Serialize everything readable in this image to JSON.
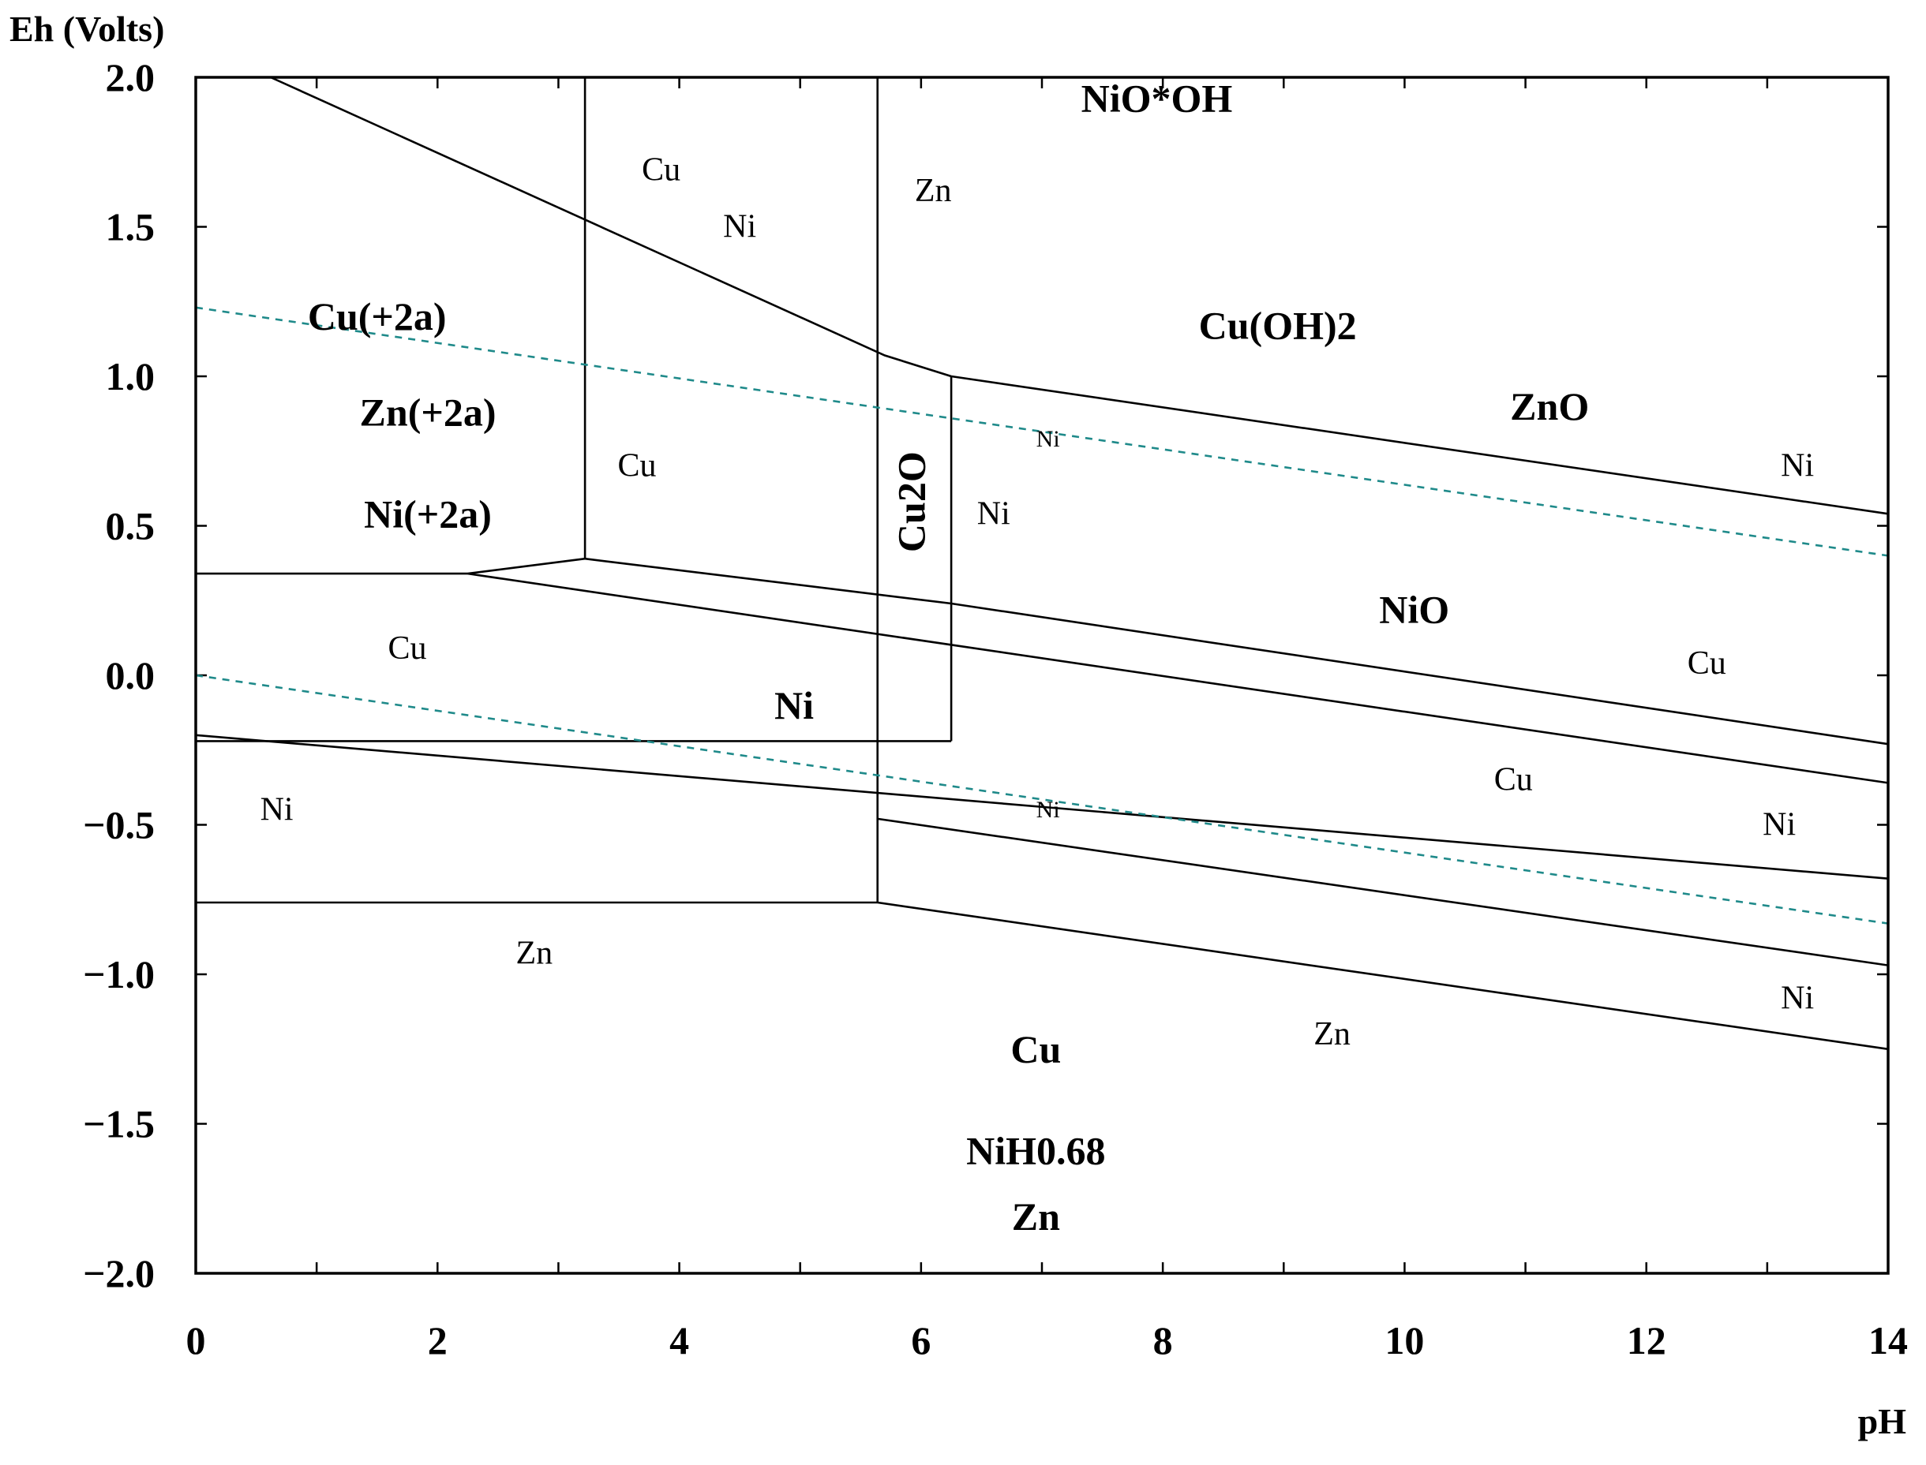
{
  "chart_data": {
    "type": "line",
    "title": "",
    "xlabel": "pH",
    "ylabel": "Eh (Volts)",
    "xlim": [
      0,
      14
    ],
    "ylim": [
      -2.0,
      2.0
    ],
    "grid": false,
    "x_ticks": [
      "0",
      "2",
      "4",
      "6",
      "8",
      "10",
      "12",
      "14"
    ],
    "y_ticks": [
      {
        "value": 2.0,
        "label": "2.0"
      },
      {
        "value": 1.5,
        "label": "1.5"
      },
      {
        "value": 1.0,
        "label": "1.0"
      },
      {
        "value": 0.5,
        "label": "0.5"
      },
      {
        "value": 0.0,
        "label": "0.0"
      },
      {
        "value": -0.5,
        "label": "-0.5"
      },
      {
        "value": -1.0,
        "label": "-1.0"
      },
      {
        "value": -1.5,
        "label": "-1.5"
      },
      {
        "value": -2.0,
        "label": "-2.0"
      }
    ],
    "boundaries": [
      {
        "style": "solid",
        "points": [
          [
            0.62,
            2.0
          ],
          [
            5.7,
            1.07
          ],
          [
            6.25,
            1.0
          ]
        ]
      },
      {
        "style": "solid",
        "points": [
          [
            6.25,
            1.0
          ],
          [
            14.0,
            0.54
          ]
        ]
      },
      {
        "style": "solid",
        "points": [
          [
            3.22,
            2.0
          ],
          [
            3.22,
            0.39
          ]
        ]
      },
      {
        "style": "solid",
        "points": [
          [
            5.64,
            2.0
          ],
          [
            5.64,
            -0.76
          ]
        ]
      },
      {
        "style": "solid",
        "points": [
          [
            6.25,
            1.0
          ],
          [
            6.25,
            -0.22
          ]
        ]
      },
      {
        "style": "solid",
        "points": [
          [
            0.0,
            0.34
          ],
          [
            2.25,
            0.34
          ]
        ]
      },
      {
        "style": "solid",
        "points": [
          [
            2.25,
            0.34
          ],
          [
            3.22,
            0.39
          ]
        ]
      },
      {
        "style": "solid",
        "points": [
          [
            3.22,
            0.39
          ],
          [
            6.25,
            0.24
          ],
          [
            14.0,
            -0.23
          ]
        ]
      },
      {
        "style": "solid",
        "points": [
          [
            2.25,
            0.34
          ],
          [
            14.0,
            -0.36
          ]
        ]
      },
      {
        "style": "solid",
        "points": [
          [
            0.0,
            -0.22
          ],
          [
            6.25,
            -0.22
          ]
        ]
      },
      {
        "style": "solid",
        "points": [
          [
            0.0,
            -0.2
          ],
          [
            14.0,
            -0.68
          ]
        ]
      },
      {
        "style": "solid",
        "points": [
          [
            5.64,
            -0.48
          ],
          [
            14.0,
            -0.97
          ]
        ]
      },
      {
        "style": "solid",
        "points": [
          [
            0.0,
            -0.76
          ],
          [
            5.64,
            -0.76
          ]
        ]
      },
      {
        "style": "solid",
        "points": [
          [
            5.64,
            -0.76
          ],
          [
            14.0,
            -1.25
          ]
        ]
      },
      {
        "style": "water",
        "points": [
          [
            0.0,
            1.23
          ],
          [
            14.0,
            0.4
          ]
        ]
      },
      {
        "style": "water",
        "points": [
          [
            0.0,
            0.0
          ],
          [
            14.0,
            -0.83
          ]
        ]
      }
    ],
    "annotations": [
      {
        "text": "NiO*OH",
        "x": 7.95,
        "y": 1.93,
        "style": "bold"
      },
      {
        "text": "Cu",
        "x": 3.85,
        "y": 1.69,
        "style": "normal"
      },
      {
        "text": "Ni",
        "x": 4.5,
        "y": 1.5,
        "style": "normal"
      },
      {
        "text": "Zn",
        "x": 6.1,
        "y": 1.62,
        "style": "normal"
      },
      {
        "text": "Cu(+2a)",
        "x": 1.5,
        "y": 1.2,
        "style": "bold"
      },
      {
        "text": "Cu(OH)2",
        "x": 8.95,
        "y": 1.17,
        "style": "bold"
      },
      {
        "text": "Zn(+2a)",
        "x": 1.92,
        "y": 0.88,
        "style": "bold"
      },
      {
        "text": "ZnO",
        "x": 11.2,
        "y": 0.9,
        "style": "bold"
      },
      {
        "text": "Cu",
        "x": 3.65,
        "y": 0.7,
        "style": "normal"
      },
      {
        "text": "Ni",
        "x": 7.05,
        "y": 0.79,
        "style": "tiny"
      },
      {
        "text": "Ni",
        "x": 13.25,
        "y": 0.7,
        "style": "normal"
      },
      {
        "text": "Ni(+2a)",
        "x": 1.92,
        "y": 0.54,
        "style": "bold"
      },
      {
        "text": "Cu2O",
        "x": 5.92,
        "y": 0.58,
        "style": "bold",
        "rotate": -90
      },
      {
        "text": "Ni",
        "x": 6.6,
        "y": 0.54,
        "style": "normal"
      },
      {
        "text": "NiO",
        "x": 10.08,
        "y": 0.22,
        "style": "bold"
      },
      {
        "text": "Cu",
        "x": 1.75,
        "y": 0.09,
        "style": "normal"
      },
      {
        "text": "Cu",
        "x": 12.5,
        "y": 0.04,
        "style": "normal"
      },
      {
        "text": "Ni",
        "x": 4.95,
        "y": -0.1,
        "style": "bold"
      },
      {
        "text": "Cu",
        "x": 10.9,
        "y": -0.35,
        "style": "normal"
      },
      {
        "text": "Ni",
        "x": 0.67,
        "y": -0.45,
        "style": "normal"
      },
      {
        "text": "Ni",
        "x": 7.05,
        "y": -0.45,
        "style": "tiny"
      },
      {
        "text": "Ni",
        "x": 13.1,
        "y": -0.5,
        "style": "normal"
      },
      {
        "text": "Zn",
        "x": 2.8,
        "y": -0.93,
        "style": "normal"
      },
      {
        "text": "Ni",
        "x": 13.25,
        "y": -1.08,
        "style": "normal"
      },
      {
        "text": "Zn",
        "x": 9.4,
        "y": -1.2,
        "style": "normal"
      },
      {
        "text": "Cu",
        "x": 6.95,
        "y": -1.25,
        "style": "bold"
      },
      {
        "text": "NiH0.68",
        "x": 6.95,
        "y": -1.59,
        "style": "bold"
      },
      {
        "text": "Zn",
        "x": 6.95,
        "y": -1.81,
        "style": "bold"
      }
    ],
    "colors": {
      "boundary": "#000000",
      "water_stability": "#1f8a8a"
    }
  }
}
